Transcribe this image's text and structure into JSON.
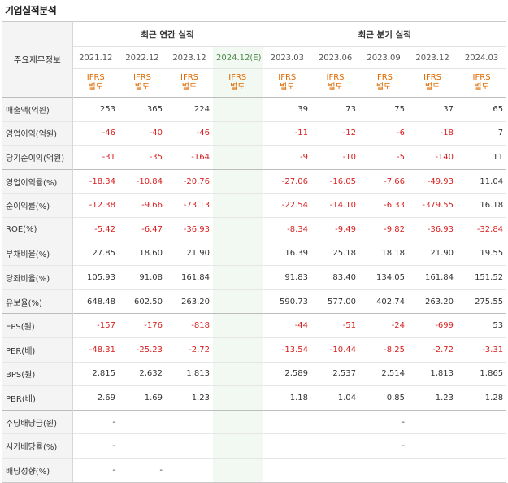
{
  "page_title": "기업실적분석",
  "header": {
    "row_label": "주요재무정보",
    "annual_group": "최근 연간 실적",
    "quarter_group": "최근 분기 실적",
    "annual_dates": [
      "2021.12",
      "2022.12",
      "2023.12",
      "2024.12(E)"
    ],
    "quarter_dates": [
      "2023.03",
      "2023.06",
      "2023.09",
      "2023.12",
      "2024.03"
    ],
    "ifrs_line1": "IFRS",
    "ifrs_line2": "별도"
  },
  "rows": [
    {
      "label": "매출액(억원)",
      "annual": [
        "253",
        "365",
        "224",
        ""
      ],
      "quarter": [
        "39",
        "73",
        "75",
        "37",
        "65"
      ]
    },
    {
      "label": "영업이익(억원)",
      "annual": [
        "-46",
        "-40",
        "-46",
        ""
      ],
      "quarter": [
        "-11",
        "-12",
        "-6",
        "-18",
        "7"
      ]
    },
    {
      "label": "당기순이익(억원)",
      "annual": [
        "-31",
        "-35",
        "-164",
        ""
      ],
      "quarter": [
        "-9",
        "-10",
        "-5",
        "-140",
        "11"
      ]
    },
    {
      "label": "영업이익률(%)",
      "annual": [
        "-18.34",
        "-10.84",
        "-20.76",
        ""
      ],
      "quarter": [
        "-27.06",
        "-16.05",
        "-7.66",
        "-49.93",
        "11.04"
      ]
    },
    {
      "label": "순이익률(%)",
      "annual": [
        "-12.38",
        "-9.66",
        "-73.13",
        ""
      ],
      "quarter": [
        "-22.54",
        "-14.10",
        "-6.33",
        "-379.55",
        "16.18"
      ]
    },
    {
      "label": "ROE(%)",
      "annual": [
        "-5.42",
        "-6.47",
        "-36.93",
        ""
      ],
      "quarter": [
        "-8.34",
        "-9.49",
        "-9.82",
        "-36.93",
        "-32.84"
      ]
    },
    {
      "label": "부채비율(%)",
      "annual": [
        "27.85",
        "18.60",
        "21.90",
        ""
      ],
      "quarter": [
        "16.39",
        "25.18",
        "18.18",
        "21.90",
        "19.55"
      ]
    },
    {
      "label": "당좌비율(%)",
      "annual": [
        "105.93",
        "91.08",
        "161.84",
        ""
      ],
      "quarter": [
        "91.83",
        "83.40",
        "134.05",
        "161.84",
        "151.52"
      ]
    },
    {
      "label": "유보율(%)",
      "annual": [
        "648.48",
        "602.50",
        "263.20",
        ""
      ],
      "quarter": [
        "590.73",
        "577.00",
        "402.74",
        "263.20",
        "275.55"
      ]
    },
    {
      "label": "EPS(원)",
      "annual": [
        "-157",
        "-176",
        "-818",
        ""
      ],
      "quarter": [
        "-44",
        "-51",
        "-24",
        "-699",
        "53"
      ]
    },
    {
      "label": "PER(배)",
      "annual": [
        "-48.31",
        "-25.23",
        "-2.72",
        ""
      ],
      "quarter": [
        "-13.54",
        "-10.44",
        "-8.25",
        "-2.72",
        "-3.31"
      ]
    },
    {
      "label": "BPS(원)",
      "annual": [
        "2,815",
        "2,632",
        "1,813",
        ""
      ],
      "quarter": [
        "2,589",
        "2,537",
        "2,514",
        "1,813",
        "1,865"
      ]
    },
    {
      "label": "PBR(배)",
      "annual": [
        "2.69",
        "1.69",
        "1.23",
        ""
      ],
      "quarter": [
        "1.18",
        "1.04",
        "0.85",
        "1.23",
        "1.28"
      ]
    },
    {
      "label": "주당배당금(원)",
      "annual": [
        "-",
        "",
        "",
        ""
      ],
      "quarter": [
        "",
        "",
        "-",
        "",
        ""
      ]
    },
    {
      "label": "시가배당률(%)",
      "annual": [
        "-",
        "",
        "",
        ""
      ],
      "quarter": [
        "",
        "",
        "-",
        "",
        ""
      ]
    },
    {
      "label": "배당성향(%)",
      "annual": [
        "-",
        "-",
        "",
        ""
      ],
      "quarter": [
        "",
        "",
        "",
        "",
        ""
      ]
    }
  ],
  "colors": {
    "negative": "#d82020",
    "ifrs": "#e06a00",
    "estimate_bg": "#f2f8f2"
  }
}
